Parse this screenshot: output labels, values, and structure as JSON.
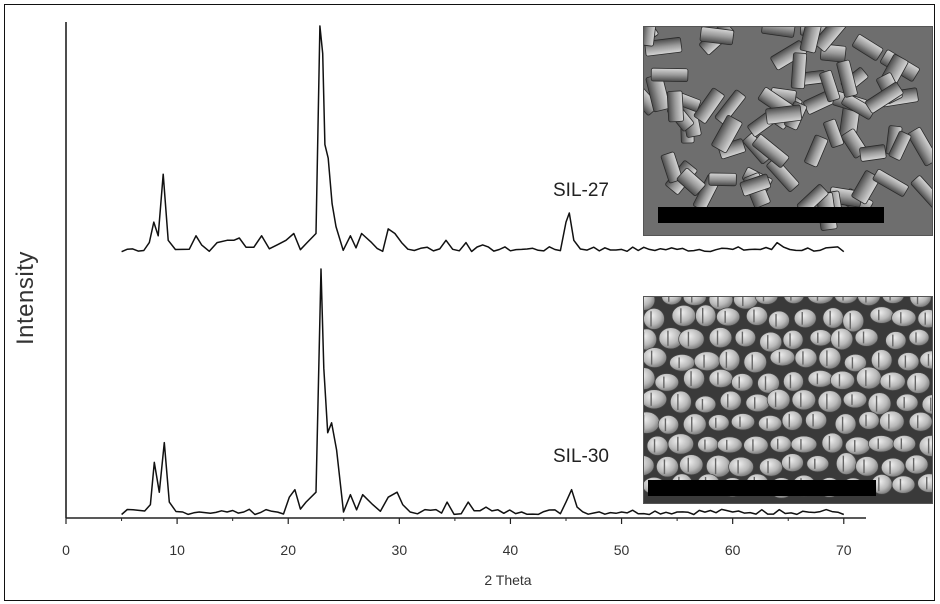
{
  "chart_data": {
    "type": "line",
    "title": "",
    "xlabel": "2 Theta",
    "ylabel": "Intensity",
    "xlim": [
      0,
      72
    ],
    "x_ticks": [
      0,
      10,
      20,
      30,
      40,
      50,
      60,
      70
    ],
    "y_ticks_shown": false,
    "series": [
      {
        "name": "SIL-27",
        "x": [
          5,
          7.5,
          7.9,
          8.3,
          8.75,
          9.2,
          10.5,
          11.7,
          12.2,
          13.6,
          14.5,
          15.1,
          15.6,
          16.2,
          17.6,
          19.0,
          19.8,
          20.5,
          21.7,
          22.5,
          22.85,
          23.1,
          23.3,
          23.6,
          23.95,
          24.3,
          25.6,
          26.6,
          27.5,
          29.0,
          29.6,
          30.2,
          32.5,
          34.2,
          36.0,
          37.5,
          41,
          45.0,
          45.3,
          45.7,
          47.5,
          50,
          55,
          60,
          64.0,
          64.6,
          70
        ],
        "y": [
          1,
          5,
          14,
          8,
          35,
          6,
          2,
          8,
          4,
          5,
          6,
          6,
          7,
          3,
          8,
          4,
          6,
          9,
          5,
          9,
          100,
          88,
          48,
          42,
          22,
          12,
          8,
          9,
          5,
          11,
          9,
          5,
          3,
          6,
          5,
          4,
          2,
          14,
          18,
          6,
          3,
          2,
          2,
          2,
          5,
          3,
          1
        ]
      },
      {
        "name": "SIL-30",
        "x": [
          5,
          7.6,
          7.95,
          8.4,
          8.85,
          9.3,
          10.5,
          12,
          14.5,
          16,
          18,
          20.1,
          20.6,
          21.6,
          22.5,
          22.95,
          23.2,
          23.55,
          23.9,
          24.35,
          25.6,
          26.7,
          27.6,
          29.0,
          29.8,
          30.3,
          32.3,
          34.3,
          36.2,
          37.8,
          41,
          45.0,
          45.5,
          46,
          50,
          55,
          60,
          64.2,
          70
        ],
        "y": [
          1,
          5,
          22,
          10,
          30,
          6,
          2,
          2,
          2,
          2,
          3,
          8,
          11,
          6,
          10,
          100,
          60,
          34,
          38,
          27,
          9,
          9,
          5,
          8,
          10,
          5,
          3,
          6,
          6,
          4,
          2,
          6,
          11,
          4,
          2,
          2,
          2,
          3,
          1
        ]
      }
    ],
    "annotations": [
      "SIL-27",
      "SIL-30"
    ],
    "grid": false,
    "legend": "none"
  }
}
